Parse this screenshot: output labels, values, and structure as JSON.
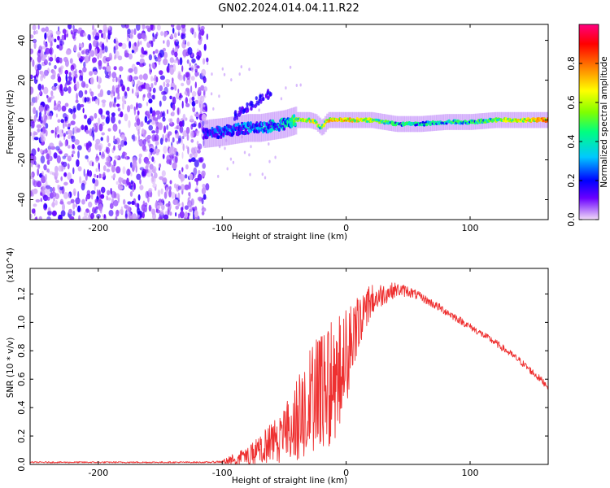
{
  "title": "GN02.2024.014.04.11.R22",
  "chart_data": [
    {
      "type": "heatmap",
      "xlabel": "Height of straight line (km)",
      "ylabel": "Frequency (Hz)",
      "xlim": [
        -255,
        163
      ],
      "ylim": [
        -50,
        48
      ],
      "x_ticks": [
        -200,
        -100,
        0,
        100
      ],
      "y_ticks": [
        -40,
        -20,
        0,
        20,
        40
      ],
      "colorbar": {
        "label": "Normalized spectral amplitude",
        "range": [
          0,
          1
        ],
        "ticks": [
          0.0,
          0.2,
          0.4,
          0.6,
          0.8
        ],
        "colors": [
          "#f2dcf7",
          "#6a00ff",
          "#0000ff",
          "#00c8ff",
          "#00ff80",
          "#80ff00",
          "#ffff00",
          "#ff8000",
          "#ff0000",
          "#ff0080"
        ]
      },
      "ridge": {
        "x": [
          -115,
          -100,
          -90,
          -80,
          -70,
          -60,
          -50,
          -40,
          -30,
          -25,
          -20,
          -15,
          -10,
          0,
          20,
          40,
          60,
          80,
          100,
          120,
          140,
          163
        ],
        "frequency": [
          -7,
          -6,
          -5,
          -4,
          -4,
          -3,
          -2,
          0,
          0,
          -1,
          -4,
          0,
          0,
          0,
          0,
          -2,
          -2,
          -1,
          -1,
          0,
          0,
          0
        ],
        "amplitude": [
          0.25,
          0.3,
          0.3,
          0.35,
          0.35,
          0.4,
          0.45,
          0.6,
          0.75,
          0.7,
          0.55,
          0.75,
          0.8,
          0.8,
          0.65,
          0.5,
          0.5,
          0.48,
          0.5,
          0.6,
          0.75,
          0.85
        ]
      }
    },
    {
      "type": "line",
      "xlabel": "Height of straight line (km)",
      "ylabel": "SNR (10 * v/v)",
      "y_multiplier": "(x10^4)",
      "xlim": [
        -255,
        163
      ],
      "ylim": [
        0,
        1.38
      ],
      "x_ticks": [
        -200,
        -100,
        0,
        100
      ],
      "y_ticks": [
        0.0,
        0.2,
        0.4,
        0.6,
        0.8,
        1.0,
        1.2
      ],
      "color": "#ee3030",
      "x": [
        -255,
        -200,
        -150,
        -110,
        -100,
        -90,
        -80,
        -70,
        -60,
        -50,
        -40,
        -30,
        -20,
        -10,
        0,
        10,
        20,
        30,
        40,
        50,
        60,
        80,
        100,
        120,
        140,
        163
      ],
      "y_center": [
        0.015,
        0.015,
        0.015,
        0.015,
        0.02,
        0.04,
        0.06,
        0.1,
        0.15,
        0.22,
        0.3,
        0.4,
        0.5,
        0.6,
        0.75,
        1.0,
        1.15,
        1.2,
        1.23,
        1.22,
        1.18,
        1.08,
        0.97,
        0.86,
        0.73,
        0.55
      ],
      "y_spread": [
        0.005,
        0.005,
        0.005,
        0.005,
        0.01,
        0.04,
        0.06,
        0.1,
        0.15,
        0.2,
        0.3,
        0.4,
        0.45,
        0.45,
        0.35,
        0.2,
        0.12,
        0.08,
        0.05,
        0.04,
        0.03,
        0.03,
        0.025,
        0.025,
        0.025,
        0.025
      ]
    }
  ]
}
